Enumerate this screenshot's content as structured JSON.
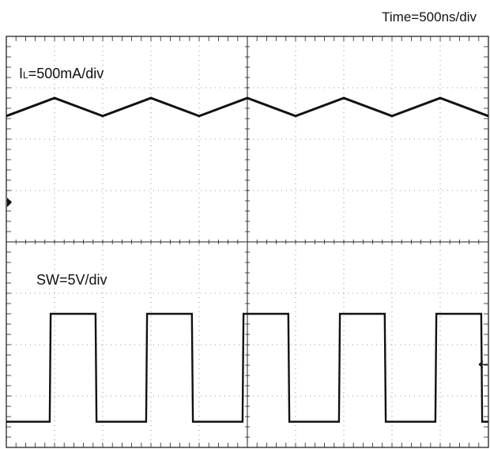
{
  "header": {
    "time_label": "Time=500ns/div"
  },
  "chart_data": {
    "type": "line",
    "time_div_label": "Time=500ns/div",
    "divisions": {
      "x": 10,
      "y": 8
    },
    "xlim_div": [
      0,
      10
    ],
    "grid": "dotted",
    "channels": [
      {
        "id": "IL",
        "label_main": "I",
        "label_sub": "L",
        "label_rest": "=500mA/div",
        "color": "#111111",
        "vertical_split": "upper half",
        "x_div": [
          0,
          1,
          2,
          3,
          4,
          5,
          6,
          7,
          8,
          9,
          10
        ],
        "y_div": [
          6.45,
          6.8,
          6.45,
          6.8,
          6.45,
          6.8,
          6.45,
          6.8,
          6.45,
          6.8,
          6.45
        ]
      },
      {
        "id": "SW",
        "label_main": "SW=5V/div",
        "color": "#111111",
        "vertical_split": "lower half",
        "x_div": [
          0,
          0.9,
          0.92,
          1.85,
          1.87,
          2.9,
          2.92,
          3.85,
          3.87,
          4.9,
          4.92,
          5.85,
          5.87,
          6.9,
          6.92,
          7.85,
          7.87,
          8.9,
          8.92,
          9.85,
          9.87,
          10
        ],
        "y_div": [
          0.5,
          0.5,
          2.6,
          2.6,
          0.5,
          0.5,
          2.6,
          2.6,
          0.5,
          0.5,
          2.6,
          2.6,
          0.5,
          0.5,
          2.6,
          2.6,
          0.5,
          0.5,
          2.6,
          2.6,
          0.5,
          0.5
        ]
      }
    ]
  }
}
